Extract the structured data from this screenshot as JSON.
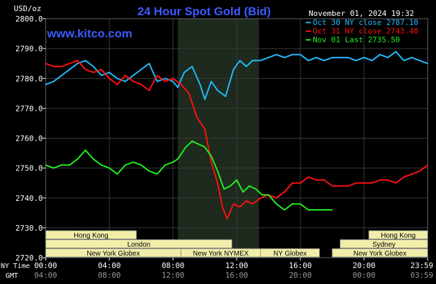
{
  "chart_data": {
    "type": "line",
    "title": "24 Hour Spot Gold (Bid)",
    "watermark": "www.kitco.com",
    "timestamp": "November 01, 2024 19:32",
    "y_unit": "USD/oz",
    "ylim": [
      2720,
      2800
    ],
    "y_ticks": [
      "2800.0",
      "2790.0",
      "2780.0",
      "2770.0",
      "2760.0",
      "2750.0",
      "2740.0",
      "2730.0",
      "2720.0"
    ],
    "xlim": [
      0,
      24
    ],
    "x_tick_hours": [
      0,
      4,
      8,
      12,
      16,
      20,
      24
    ],
    "x_row1_label": "NY Time",
    "x_row1_ticks": [
      "00:00",
      "04:00",
      "08:00",
      "12:00",
      "16:00",
      "20:00",
      "23:59"
    ],
    "x_row2_label": "GMT",
    "x_row2_ticks": [
      "04:00",
      "08:00",
      "12:00",
      "16:00",
      "20:00",
      "00:00",
      "03:59"
    ],
    "highlight_hours": [
      8.3,
      13.4
    ],
    "grid": true,
    "legend_position": "top-right",
    "series": [
      {
        "name": "Oct 30 NY close 2787.10",
        "color": "#22bbff",
        "points": [
          [
            0,
            2778
          ],
          [
            0.5,
            2779
          ],
          [
            1,
            2781
          ],
          [
            1.5,
            2783
          ],
          [
            2,
            2785
          ],
          [
            2.5,
            2786
          ],
          [
            3,
            2784
          ],
          [
            3.5,
            2781
          ],
          [
            4,
            2782
          ],
          [
            4.5,
            2780
          ],
          [
            5,
            2779
          ],
          [
            5.5,
            2781
          ],
          [
            6,
            2783
          ],
          [
            6.5,
            2785
          ],
          [
            7,
            2779
          ],
          [
            7.5,
            2780
          ],
          [
            8,
            2779
          ],
          [
            8.3,
            2777
          ],
          [
            8.7,
            2782
          ],
          [
            9.2,
            2784
          ],
          [
            9.7,
            2778
          ],
          [
            10,
            2773
          ],
          [
            10.4,
            2779
          ],
          [
            10.8,
            2776
          ],
          [
            11.3,
            2774
          ],
          [
            11.8,
            2783
          ],
          [
            12.2,
            2786
          ],
          [
            12.6,
            2784
          ],
          [
            13,
            2786
          ],
          [
            13.5,
            2786
          ],
          [
            14,
            2787
          ],
          [
            14.5,
            2788
          ],
          [
            15,
            2787
          ],
          [
            15.5,
            2788
          ],
          [
            16,
            2788
          ],
          [
            16.5,
            2786
          ],
          [
            17,
            2787
          ],
          [
            17.5,
            2786
          ],
          [
            18,
            2787
          ],
          [
            18.5,
            2787
          ],
          [
            19,
            2787
          ],
          [
            19.5,
            2786
          ],
          [
            20,
            2787
          ],
          [
            20.5,
            2786
          ],
          [
            21,
            2788
          ],
          [
            21.5,
            2787
          ],
          [
            22,
            2789
          ],
          [
            22.5,
            2786
          ],
          [
            23,
            2787
          ],
          [
            23.5,
            2786
          ],
          [
            24,
            2785
          ]
        ]
      },
      {
        "name": "Oct 31 NY close 2743.40",
        "color": "#ff1111",
        "points": [
          [
            0,
            2785
          ],
          [
            0.5,
            2784
          ],
          [
            1,
            2784
          ],
          [
            1.5,
            2785
          ],
          [
            2,
            2786
          ],
          [
            2.5,
            2783
          ],
          [
            3,
            2782
          ],
          [
            3.5,
            2783
          ],
          [
            4,
            2780
          ],
          [
            4.5,
            2778
          ],
          [
            5,
            2781
          ],
          [
            5.5,
            2779
          ],
          [
            6,
            2778
          ],
          [
            6.5,
            2776
          ],
          [
            7,
            2781
          ],
          [
            7.5,
            2779
          ],
          [
            8,
            2780
          ],
          [
            8.5,
            2778
          ],
          [
            9,
            2775
          ],
          [
            9.5,
            2767
          ],
          [
            10,
            2763
          ],
          [
            10.4,
            2752
          ],
          [
            10.8,
            2745
          ],
          [
            11.1,
            2737
          ],
          [
            11.4,
            2733
          ],
          [
            11.8,
            2738
          ],
          [
            12.2,
            2737
          ],
          [
            12.6,
            2739
          ],
          [
            13,
            2738
          ],
          [
            13.5,
            2740
          ],
          [
            14,
            2741
          ],
          [
            14.5,
            2740
          ],
          [
            15,
            2742
          ],
          [
            15.5,
            2745
          ],
          [
            16,
            2745
          ],
          [
            16.5,
            2747
          ],
          [
            17,
            2746
          ],
          [
            17.5,
            2746
          ],
          [
            18,
            2744
          ],
          [
            18.5,
            2744
          ],
          [
            19,
            2744
          ],
          [
            19.5,
            2745
          ],
          [
            20,
            2745
          ],
          [
            20.5,
            2745
          ],
          [
            21,
            2746
          ],
          [
            21.5,
            2746
          ],
          [
            22,
            2745
          ],
          [
            22.5,
            2747
          ],
          [
            23,
            2748
          ],
          [
            23.5,
            2749
          ],
          [
            24,
            2751
          ]
        ]
      },
      {
        "name": "Nov 01 Last 2735.50",
        "color": "#22ee22",
        "points": [
          [
            0,
            2751
          ],
          [
            0.5,
            2750
          ],
          [
            1,
            2751
          ],
          [
            1.5,
            2751
          ],
          [
            2,
            2753
          ],
          [
            2.5,
            2756
          ],
          [
            3,
            2753
          ],
          [
            3.5,
            2751
          ],
          [
            4,
            2750
          ],
          [
            4.5,
            2748
          ],
          [
            5,
            2751
          ],
          [
            5.5,
            2752
          ],
          [
            6,
            2751
          ],
          [
            6.5,
            2749
          ],
          [
            7,
            2748
          ],
          [
            7.5,
            2751
          ],
          [
            8,
            2752
          ],
          [
            8.3,
            2753
          ],
          [
            8.8,
            2757
          ],
          [
            9.2,
            2759
          ],
          [
            9.6,
            2758
          ],
          [
            10,
            2757
          ],
          [
            10.4,
            2754
          ],
          [
            10.8,
            2749
          ],
          [
            11.2,
            2743
          ],
          [
            11.6,
            2744
          ],
          [
            12,
            2746
          ],
          [
            12.4,
            2742
          ],
          [
            12.8,
            2744
          ],
          [
            13.2,
            2743
          ],
          [
            13.6,
            2741
          ],
          [
            14,
            2741
          ],
          [
            14.5,
            2738
          ],
          [
            15,
            2736
          ],
          [
            15.5,
            2738
          ],
          [
            16,
            2738
          ],
          [
            16.5,
            2736
          ],
          [
            17,
            2736
          ],
          [
            17.5,
            2736
          ],
          [
            18,
            2736
          ]
        ]
      }
    ]
  },
  "sessions": [
    {
      "name": "Hong Kong",
      "start": 0,
      "end": 5.7,
      "row": 0
    },
    {
      "name": "London",
      "start": 0,
      "end": 11.7,
      "row": 1
    },
    {
      "name": "New York Globex",
      "start": 0,
      "end": 8.5,
      "row": 2
    },
    {
      "name": "New York NYMEX",
      "start": 8.5,
      "end": 13.5,
      "row": 2
    },
    {
      "name": "NY Globex",
      "start": 13.5,
      "end": 17.2,
      "row": 2
    },
    {
      "name": "Hong Kong",
      "start": 20.3,
      "end": 24,
      "row": 0
    },
    {
      "name": "Sydney",
      "start": 18.5,
      "end": 24,
      "row": 1
    },
    {
      "name": "New York Globex",
      "start": 18.0,
      "end": 24,
      "row": 2
    }
  ],
  "colors": {
    "background": "#000000",
    "grid": "#3a3a3a",
    "highlight": "#1e2a1e",
    "title": "#3d5bff",
    "watermark": "#3d5bff",
    "text": "#ffffff",
    "axis_text_row2": "#9a9a9a",
    "session_fill": "#f2eeaa",
    "session_text": "#000000"
  }
}
